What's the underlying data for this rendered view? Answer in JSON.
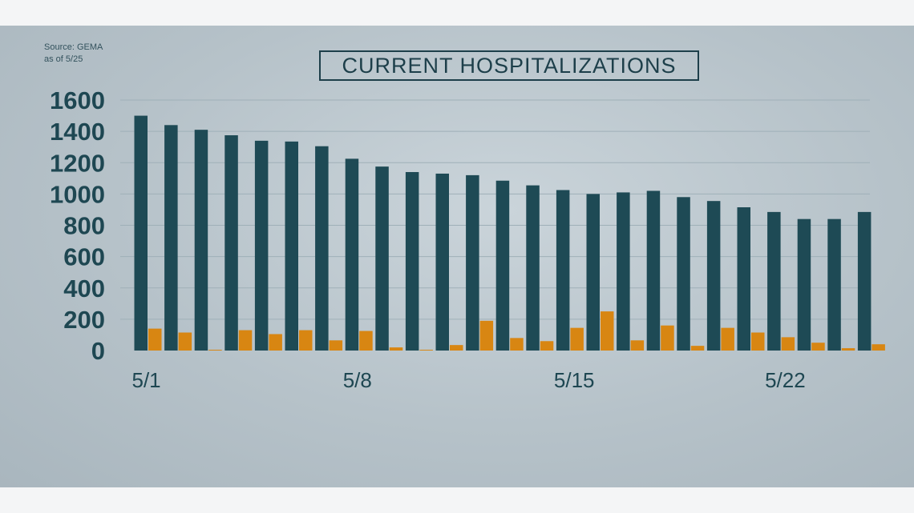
{
  "source_line1": "Source: GEMA",
  "source_line2": "as of 5/25",
  "title": "CURRENT HOSPITALIZATIONS",
  "colors": {
    "series_total": "#1e4a55",
    "series_new": "#d88612",
    "gridline": "#9fb0b8",
    "text": "#1e4752"
  },
  "chart_data": {
    "type": "bar",
    "title": "CURRENT HOSPITALIZATIONS",
    "x": [
      "5/1",
      "5/2",
      "5/3",
      "5/4",
      "5/5",
      "5/6",
      "5/7",
      "5/8",
      "5/9",
      "5/10",
      "5/11",
      "5/12",
      "5/13",
      "5/14",
      "5/15",
      "5/16",
      "5/17",
      "5/18",
      "5/19",
      "5/20",
      "5/21",
      "5/22",
      "5/23",
      "5/24",
      "5/25"
    ],
    "x_tick_labels": [
      "5/1",
      "5/8",
      "5/15",
      "5/22"
    ],
    "y_ticks": [
      0,
      200,
      400,
      600,
      800,
      1000,
      1200,
      1400,
      1600
    ],
    "ylim": [
      0,
      1600
    ],
    "grid": true,
    "legend": "none",
    "series": [
      {
        "values": [
          1500,
          1440,
          1410,
          1375,
          1340,
          1335,
          1305,
          1225,
          1175,
          1140,
          1130,
          1120,
          1085,
          1055,
          1025,
          1000,
          1010,
          1020,
          980,
          955,
          915,
          885,
          840,
          840,
          885
        ]
      },
      {
        "values": [
          140,
          115,
          5,
          130,
          105,
          130,
          65,
          125,
          20,
          5,
          35,
          190,
          80,
          60,
          145,
          250,
          65,
          160,
          30,
          145,
          115,
          85,
          50,
          15,
          40
        ]
      }
    ]
  }
}
